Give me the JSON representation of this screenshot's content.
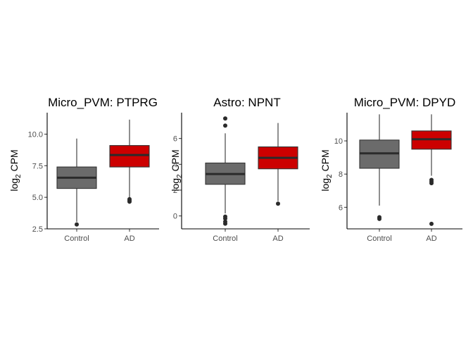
{
  "colors": {
    "Control": "#6b6b6b",
    "AD": "#cc0000"
  },
  "chart_data": [
    {
      "type": "boxplot",
      "title": "Micro_PVM: PTPRG",
      "ylabel_main": "log",
      "ylabel_sub": "2",
      "ylabel_rest": " CPM",
      "categories": [
        "Control",
        "AD"
      ],
      "ylim": [
        2.5,
        11.7
      ],
      "yticks": [
        2.5,
        5.0,
        7.5,
        10.0
      ],
      "ytick_labels": [
        "2.5",
        "5.0",
        "7.5",
        "10.0"
      ],
      "boxes": [
        {
          "name": "Control",
          "whisker_low": 3.05,
          "q1": 5.7,
          "median": 6.55,
          "q3": 7.4,
          "whisker_high": 9.65,
          "outliers": [
            2.85
          ]
        },
        {
          "name": "AD",
          "whisker_low": 5.0,
          "q1": 7.4,
          "median": 8.35,
          "q3": 9.1,
          "whisker_high": 11.15,
          "outliers": [
            4.65,
            4.75,
            4.85
          ]
        }
      ]
    },
    {
      "type": "boxplot",
      "title": "Astro: NPNT",
      "ylabel_main": "log",
      "ylabel_sub": "2",
      "ylabel_rest": " CPM",
      "categories": [
        "Control",
        "AD"
      ],
      "ylim": [
        -1.0,
        8.0
      ],
      "yticks": [
        0,
        2,
        4,
        6
      ],
      "ytick_labels": [
        "0",
        "2",
        "4",
        "6"
      ],
      "boxes": [
        {
          "name": "Control",
          "whisker_low": 0.2,
          "q1": 2.45,
          "median": 3.25,
          "q3": 4.1,
          "whisker_high": 6.4,
          "outliers": [
            -0.6,
            -0.45,
            -0.2,
            -0.05,
            7.0,
            7.55
          ]
        },
        {
          "name": "AD",
          "whisker_low": 1.15,
          "q1": 3.65,
          "median": 4.5,
          "q3": 5.35,
          "whisker_high": 7.2,
          "outliers": [
            0.95
          ]
        }
      ]
    },
    {
      "type": "boxplot",
      "title": "Micro_PVM: DPYD",
      "ylabel_main": "log",
      "ylabel_sub": "2",
      "ylabel_rest": " CPM",
      "categories": [
        "Control",
        "AD"
      ],
      "ylim": [
        4.7,
        11.7
      ],
      "yticks": [
        6,
        8,
        10
      ],
      "ytick_labels": [
        "6",
        "8",
        "10"
      ],
      "boxes": [
        {
          "name": "Control",
          "whisker_low": 6.1,
          "q1": 8.35,
          "median": 9.25,
          "q3": 10.05,
          "whisker_high": 11.6,
          "outliers": [
            5.3,
            5.4
          ]
        },
        {
          "name": "AD",
          "whisker_low": 7.9,
          "q1": 9.5,
          "median": 10.1,
          "q3": 10.6,
          "whisker_high": 11.6,
          "outliers": [
            5.0,
            7.45,
            7.55,
            7.65
          ]
        }
      ]
    }
  ]
}
